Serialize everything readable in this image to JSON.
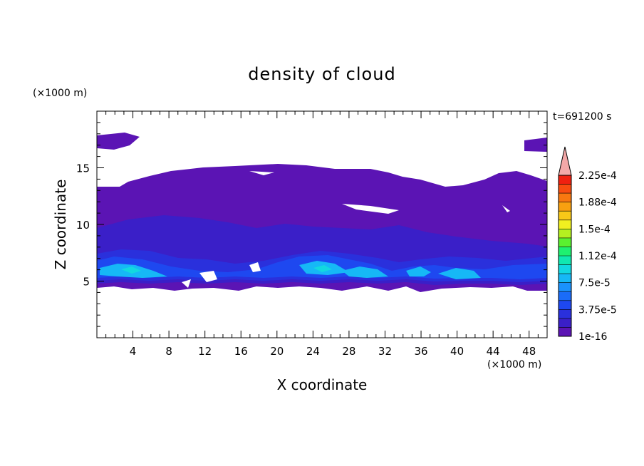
{
  "chart_data": {
    "type": "heatmap",
    "title": "density of cloud",
    "xlabel": "X coordinate",
    "ylabel": "Z coordinate",
    "x_unit": "(×1000 m)",
    "y_unit": "(×1000 m)",
    "time_label": "t=691200 s",
    "xlim": [
      0,
      50
    ],
    "ylim": [
      0,
      20
    ],
    "x_ticks": [
      4,
      8,
      12,
      16,
      20,
      24,
      28,
      32,
      36,
      40,
      44,
      48
    ],
    "y_ticks": [
      5,
      10,
      15
    ],
    "colorbar": {
      "labels": [
        "1e-16",
        "3.75e-5",
        "7.5e-5",
        "1.12e-4",
        "1.5e-4",
        "1.88e-4",
        "2.25e-4"
      ],
      "colors": [
        "#5b14b4",
        "#3a1fc8",
        "#2a30dc",
        "#1e48f0",
        "#1a6cf8",
        "#1a92fc",
        "#16b8f6",
        "#12d8e0",
        "#10e8b0",
        "#1ef070",
        "#5af030",
        "#b4f020",
        "#f0f020",
        "#f8c818",
        "#f8a010",
        "#f87810",
        "#f84c10",
        "#f02010"
      ],
      "extend_color": "#f4a8a8"
    }
  }
}
